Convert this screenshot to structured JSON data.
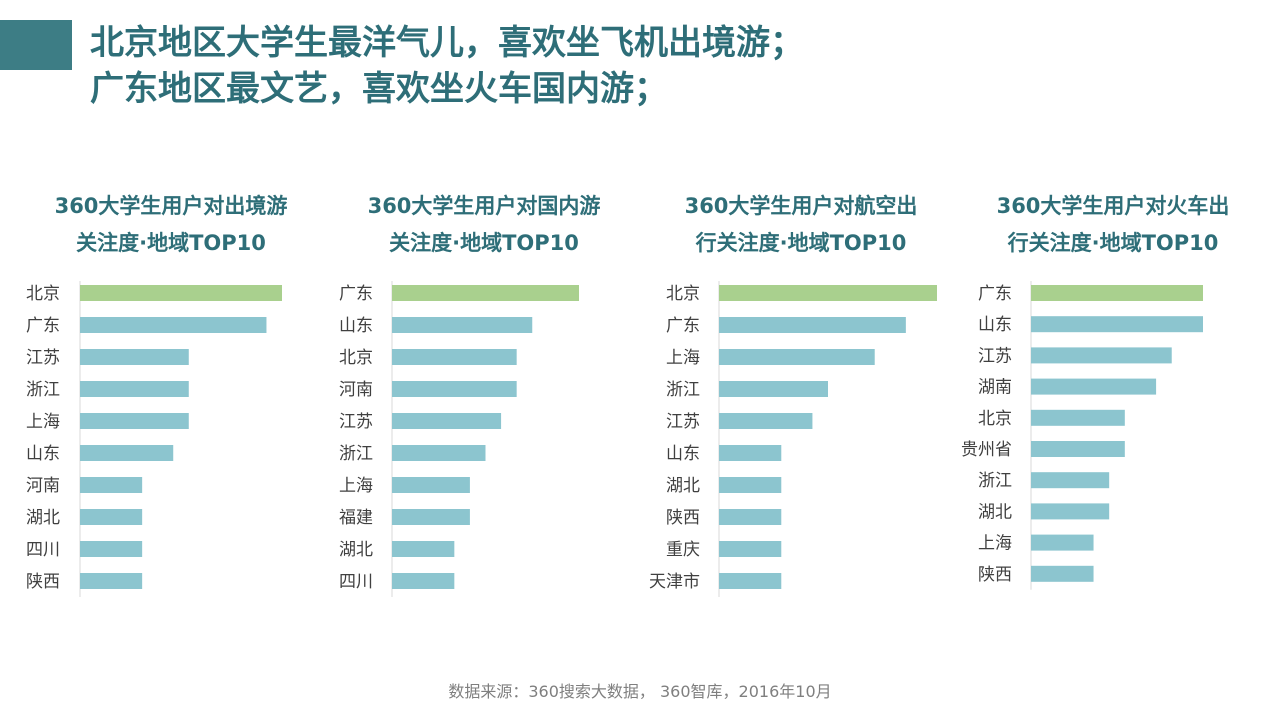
{
  "page": {
    "headline": [
      "北京地区大学生最洋气儿，喜欢坐飞机出境游；",
      "广东地区最文艺，喜欢坐火车国内游；"
    ],
    "source": "数据来源：360搜索大数据， 360智库，2016年10月"
  },
  "colors": {
    "accent": "#3d7d85",
    "headline": "#2e6e78",
    "bar_highlight": "#a9d08e",
    "bar_default": "#8cc5cf",
    "axis": "#d9d9d9"
  },
  "chart_data": [
    {
      "type": "bar",
      "orientation": "horizontal",
      "title": [
        "360大学生用户对出境游",
        "关注度·地域TOP10"
      ],
      "categories": [
        "北京",
        "广东",
        "江苏",
        "浙江",
        "上海",
        "山东",
        "河南",
        "湖北",
        "四川",
        "陕西"
      ],
      "values": [
        13,
        12,
        7,
        7,
        7,
        6,
        4,
        4,
        4,
        4
      ],
      "xlim": [
        0,
        13
      ]
    },
    {
      "type": "bar",
      "orientation": "horizontal",
      "title": [
        "360大学生用户对国内游",
        "关注度·地域TOP10"
      ],
      "categories": [
        "广东",
        "山东",
        "北京",
        "河南",
        "江苏",
        "浙江",
        "上海",
        "福建",
        "湖北",
        "四川"
      ],
      "values": [
        12,
        9,
        8,
        8,
        7,
        6,
        5,
        5,
        4,
        4
      ],
      "xlim": [
        0,
        12
      ]
    },
    {
      "type": "bar",
      "orientation": "horizontal",
      "title": [
        "360大学生用户对航空出",
        "行关注度·地域TOP10"
      ],
      "categories": [
        "北京",
        "广东",
        "上海",
        "浙江",
        "江苏",
        "山东",
        "湖北",
        "陕西",
        "重庆",
        "天津市"
      ],
      "values": [
        14,
        12,
        10,
        7,
        6,
        4,
        4,
        4,
        4,
        4
      ],
      "xlim": [
        0,
        14
      ]
    },
    {
      "type": "bar",
      "orientation": "horizontal",
      "title": [
        "360大学生用户对火车出",
        "行关注度·地域TOP10"
      ],
      "categories": [
        "广东",
        "山东",
        "江苏",
        "湖南",
        "北京",
        "贵州省",
        "浙江",
        "湖北",
        "上海",
        "陕西"
      ],
      "values": [
        11,
        11,
        9,
        8,
        6,
        6,
        5,
        5,
        4,
        4
      ],
      "xlim": [
        0,
        11
      ]
    }
  ]
}
